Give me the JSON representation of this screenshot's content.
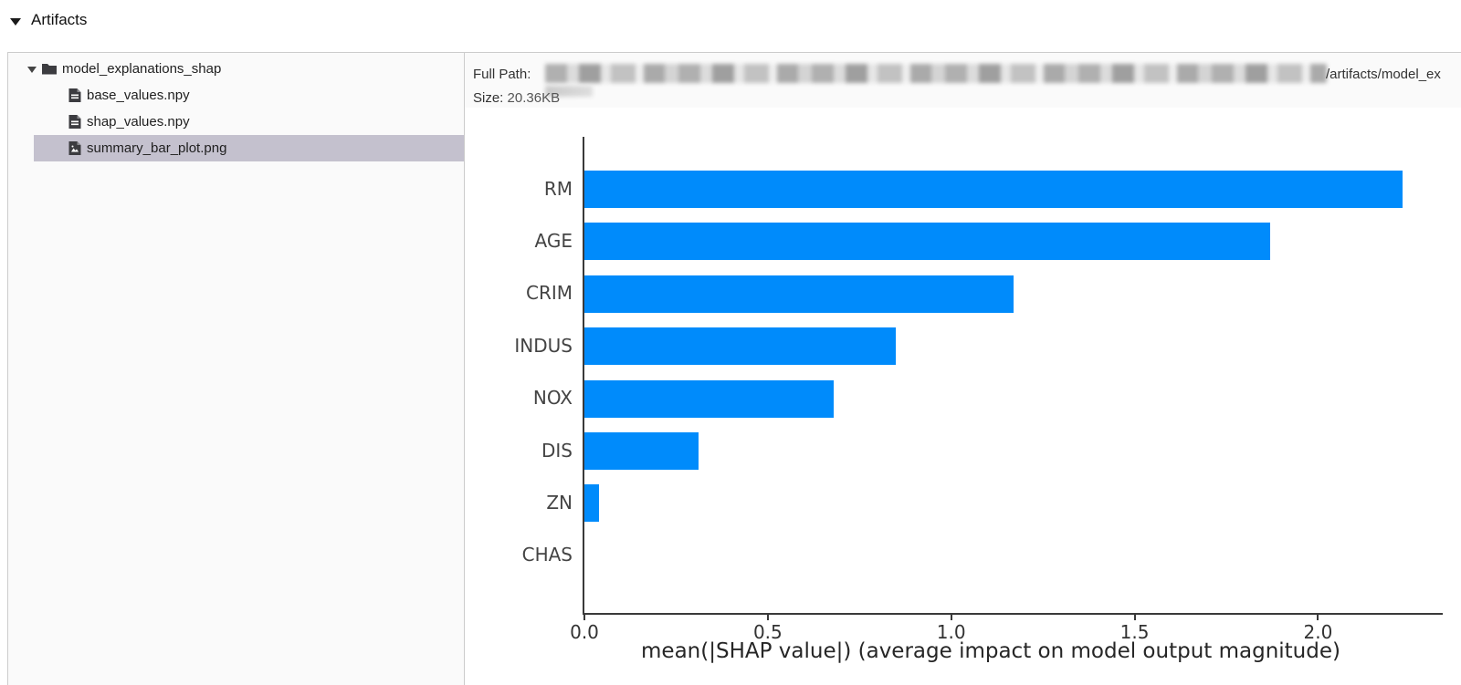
{
  "header": {
    "title": "Artifacts"
  },
  "file_tree": {
    "folder": {
      "label": "model_explanations_shap",
      "expanded": true
    },
    "files": [
      {
        "label": "base_values.npy",
        "type": "doc",
        "selected": false
      },
      {
        "label": "shap_values.npy",
        "type": "doc",
        "selected": false
      },
      {
        "label": "summary_bar_plot.png",
        "type": "image",
        "selected": true
      }
    ]
  },
  "detail": {
    "full_path_label": "Full Path:",
    "path_redacted": true,
    "path_visible_suffix": "/artifacts/model_ex",
    "size_label": "Size:",
    "size_value": "20.36KB"
  },
  "chart_data": {
    "type": "bar",
    "orientation": "horizontal",
    "title": "",
    "categories": [
      "RM",
      "AGE",
      "CRIM",
      "INDUS",
      "NOX",
      "DIS",
      "ZN",
      "CHAS"
    ],
    "values": [
      2.23,
      1.87,
      1.17,
      0.85,
      0.68,
      0.31,
      0.04,
      0.0
    ],
    "xlabel": "mean(|SHAP value|) (average impact on model output magnitude)",
    "ylabel": "",
    "xticks": [
      "0.0",
      "0.5",
      "1.0",
      "1.5",
      "2.0"
    ],
    "xtick_values": [
      0.0,
      0.5,
      1.0,
      1.5,
      2.0
    ],
    "xlim": [
      0,
      2.34
    ],
    "grid": false,
    "legend": false,
    "bar_color": "#008bfb"
  },
  "colors": {
    "selected_row_bg": "#c4c1ce",
    "panel_bg": "#fafafa",
    "panel_border": "#cccccc",
    "bar_blue": "#008bfb"
  }
}
